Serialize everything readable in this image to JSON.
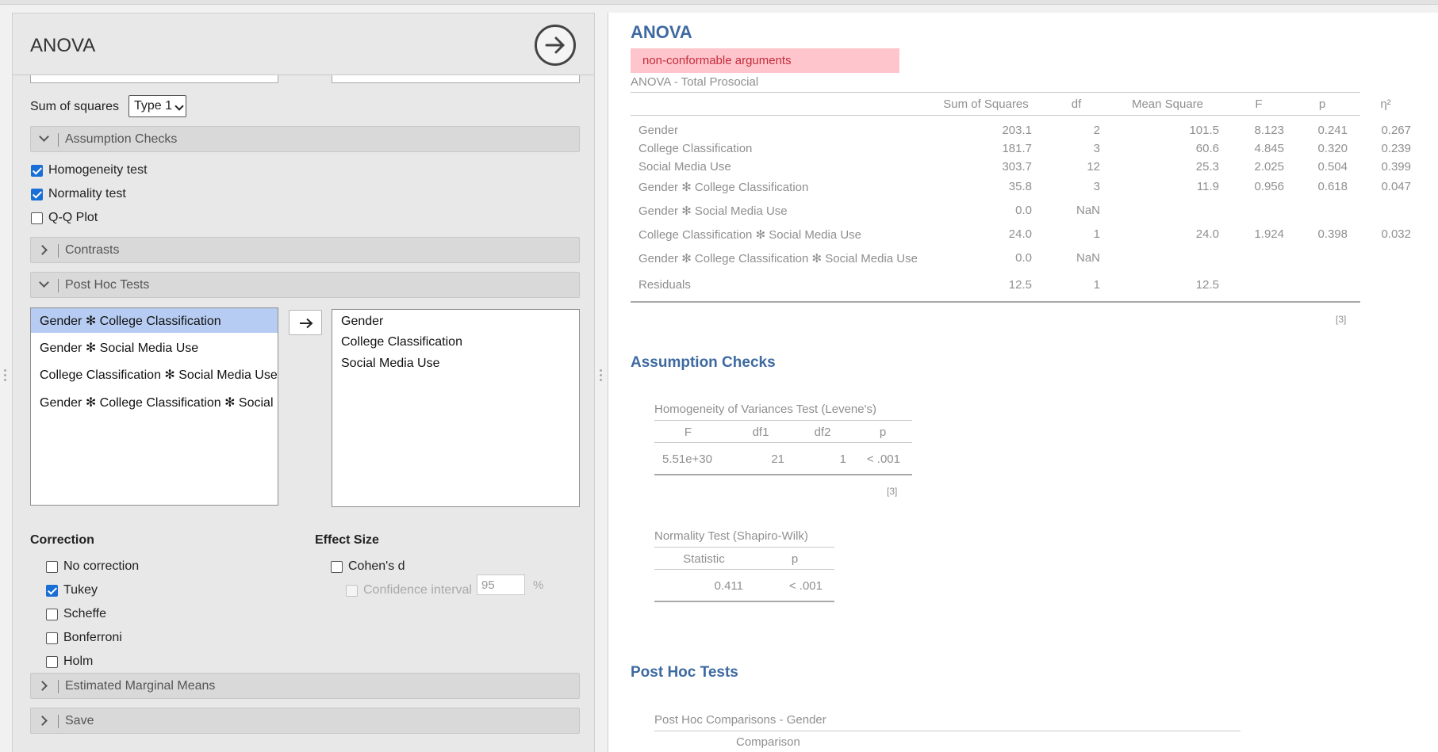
{
  "options": {
    "title": "ANOVA",
    "sum_of_squares_label": "Sum of squares",
    "sum_of_squares_value": "Type 1",
    "sections": {
      "assumption_checks": "Assumption Checks",
      "contrasts": "Contrasts",
      "post_hoc": "Post Hoc Tests",
      "emm": "Estimated Marginal Means",
      "save": "Save"
    },
    "assumption_checks": {
      "homogeneity": "Homogeneity test",
      "normality": "Normality test",
      "qq": "Q-Q Plot"
    },
    "post_hoc_available": [
      "Gender ✻ College Classification",
      "Gender ✻ Social Media Use",
      "College Classification ✻ Social Media Use",
      "Gender ✻ College Classification ✻ Social Media Use"
    ],
    "post_hoc_selected": [
      "Gender",
      "College Classification",
      "Social Media Use"
    ],
    "correction": {
      "title": "Correction",
      "items": [
        "No correction",
        "Tukey",
        "Scheffe",
        "Bonferroni",
        "Holm"
      ]
    },
    "effect_size": {
      "title": "Effect Size",
      "cohens_d": "Cohen's d",
      "confidence_interval": "Confidence interval",
      "ci_value": "95",
      "pct": "%"
    }
  },
  "results": {
    "title": "ANOVA",
    "error": "non-conformable arguments",
    "anova_table": {
      "caption": "ANOVA - Total Prosocial",
      "headers": [
        "Sum of Squares",
        "df",
        "Mean Square",
        "F",
        "p",
        "η²"
      ],
      "rows": [
        {
          "term": "Gender",
          "ss": "203.1",
          "df": "2",
          "ms": "101.5",
          "f": "8.123",
          "p": "0.241",
          "eta": "0.267"
        },
        {
          "term": "College Classification",
          "ss": "181.7",
          "df": "3",
          "ms": "60.6",
          "f": "4.845",
          "p": "0.320",
          "eta": "0.239"
        },
        {
          "term": "Social Media Use",
          "ss": "303.7",
          "df": "12",
          "ms": "25.3",
          "f": "2.025",
          "p": "0.504",
          "eta": "0.399"
        },
        {
          "term": "Gender ✻ College Classification",
          "ss": "35.8",
          "df": "3",
          "ms": "11.9",
          "f": "0.956",
          "p": "0.618",
          "eta": "0.047"
        },
        {
          "term": "Gender ✻ Social Media Use",
          "ss": "0.0",
          "df": "NaN",
          "ms": "",
          "f": "",
          "p": "",
          "eta": ""
        },
        {
          "term": "College Classification ✻ Social Media Use",
          "ss": "24.0",
          "df": "1",
          "ms": "24.0",
          "f": "1.924",
          "p": "0.398",
          "eta": "0.032"
        },
        {
          "term": "Gender ✻ College Classification ✻ Social Media Use",
          "ss": "0.0",
          "df": "NaN",
          "ms": "",
          "f": "",
          "p": "",
          "eta": ""
        },
        {
          "term": "Residuals",
          "ss": "12.5",
          "df": "1",
          "ms": "12.5",
          "f": "",
          "p": "",
          "eta": ""
        }
      ],
      "footnote": "[3]"
    },
    "assumption_checks": {
      "title": "Assumption Checks",
      "levene": {
        "caption": "Homogeneity of Variances Test (Levene's)",
        "headers": [
          "F",
          "df1",
          "df2",
          "p"
        ],
        "row": [
          "5.51e+30",
          "21",
          "1",
          "< .001"
        ],
        "footnote": "[3]"
      },
      "shapiro": {
        "caption": "Normality Test (Shapiro-Wilk)",
        "headers": [
          "Statistic",
          "p"
        ],
        "row": [
          "0.411",
          "< .001"
        ]
      }
    },
    "post_hoc": {
      "title": "Post Hoc Tests",
      "caption": "Post Hoc Comparisons - Gender",
      "comparison_header": "Comparison"
    }
  }
}
